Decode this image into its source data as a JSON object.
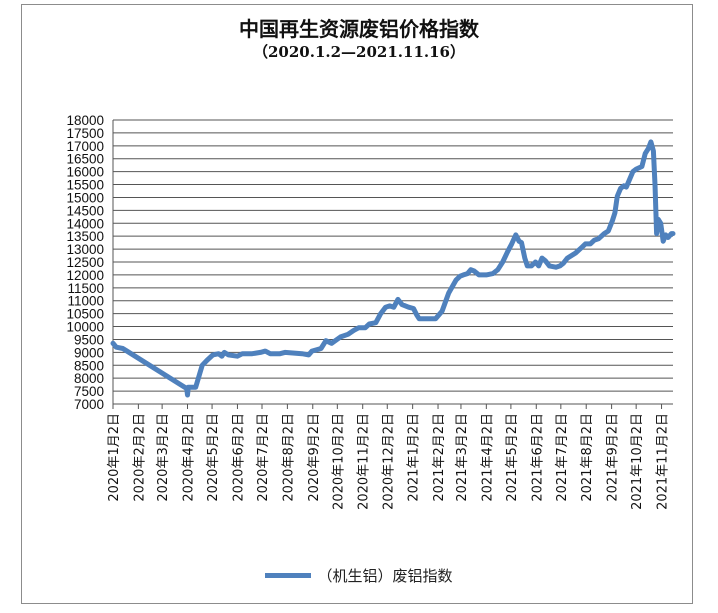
{
  "chart_data": {
    "type": "line",
    "title": "中国再生资源废铝价格指数",
    "subtitle": "（2020.1.2—2021.11.16）",
    "xlabel": "",
    "ylabel": "",
    "ylim": [
      7000,
      18000
    ],
    "yticks": [
      7000,
      7500,
      8000,
      8500,
      9000,
      9500,
      10000,
      10500,
      11000,
      11500,
      12000,
      12500,
      13000,
      13500,
      14000,
      14500,
      15000,
      15500,
      16000,
      16500,
      17000,
      17500,
      18000
    ],
    "xlim": [
      "2020-01-02",
      "2021-11-16"
    ],
    "x_ticks": [
      {
        "date": "2020-01-02",
        "label": "2020年1月2日"
      },
      {
        "date": "2020-02-02",
        "label": "2020年2月2日"
      },
      {
        "date": "2020-03-02",
        "label": "2020年3月2日"
      },
      {
        "date": "2020-04-02",
        "label": "2020年4月2日"
      },
      {
        "date": "2020-05-02",
        "label": "2020年5月2日"
      },
      {
        "date": "2020-06-02",
        "label": "2020年6月2日"
      },
      {
        "date": "2020-07-02",
        "label": "2020年7月2日"
      },
      {
        "date": "2020-08-02",
        "label": "2020年8月2日"
      },
      {
        "date": "2020-09-02",
        "label": "2020年9月2日"
      },
      {
        "date": "2020-10-02",
        "label": "2020年10月2日"
      },
      {
        "date": "2020-11-02",
        "label": "2020年11月2日"
      },
      {
        "date": "2020-12-02",
        "label": "2020年12月2日"
      },
      {
        "date": "2021-01-02",
        "label": "2021年1月2日"
      },
      {
        "date": "2021-02-02",
        "label": "2021年2月2日"
      },
      {
        "date": "2021-03-02",
        "label": "2021年3月2日"
      },
      {
        "date": "2021-04-02",
        "label": "2021年4月2日"
      },
      {
        "date": "2021-05-02",
        "label": "2021年5月2日"
      },
      {
        "date": "2021-06-02",
        "label": "2021年6月2日"
      },
      {
        "date": "2021-07-02",
        "label": "2021年7月2日"
      },
      {
        "date": "2021-08-02",
        "label": "2021年8月2日"
      },
      {
        "date": "2021-09-02",
        "label": "2021年9月2日"
      },
      {
        "date": "2021-10-02",
        "label": "2021年10月2日"
      },
      {
        "date": "2021-11-02",
        "label": "2021年11月2日"
      }
    ],
    "grid": true,
    "legend": "bottom",
    "color": "#4f81bd",
    "series": [
      {
        "name": "（机生铝）废铝指数",
        "points": [
          [
            "2020-01-02",
            9350
          ],
          [
            "2020-01-06",
            9200
          ],
          [
            "2020-01-14",
            9150
          ],
          [
            "2020-04-01",
            7600
          ],
          [
            "2020-04-02",
            7350
          ],
          [
            "2020-04-03",
            7650
          ],
          [
            "2020-04-12",
            7650
          ],
          [
            "2020-04-20",
            8500
          ],
          [
            "2020-04-26",
            8700
          ],
          [
            "2020-05-03",
            8900
          ],
          [
            "2020-05-10",
            8950
          ],
          [
            "2020-05-14",
            8850
          ],
          [
            "2020-05-17",
            9000
          ],
          [
            "2020-05-22",
            8900
          ],
          [
            "2020-06-02",
            8850
          ],
          [
            "2020-06-08",
            8950
          ],
          [
            "2020-06-20",
            8950
          ],
          [
            "2020-06-30",
            9000
          ],
          [
            "2020-07-06",
            9050
          ],
          [
            "2020-07-12",
            8950
          ],
          [
            "2020-07-24",
            8950
          ],
          [
            "2020-07-30",
            9000
          ],
          [
            "2020-08-20",
            8950
          ],
          [
            "2020-08-28",
            8900
          ],
          [
            "2020-09-01",
            9050
          ],
          [
            "2020-09-12",
            9150
          ],
          [
            "2020-09-18",
            9450
          ],
          [
            "2020-09-25",
            9350
          ],
          [
            "2020-10-06",
            9600
          ],
          [
            "2020-10-15",
            9700
          ],
          [
            "2020-10-22",
            9850
          ],
          [
            "2020-10-28",
            9950
          ],
          [
            "2020-11-05",
            9950
          ],
          [
            "2020-11-10",
            10100
          ],
          [
            "2020-11-18",
            10150
          ],
          [
            "2020-11-24",
            10500
          ],
          [
            "2020-11-30",
            10750
          ],
          [
            "2020-12-05",
            10800
          ],
          [
            "2020-12-10",
            10750
          ],
          [
            "2020-12-15",
            11050
          ],
          [
            "2020-12-20",
            10850
          ],
          [
            "2020-12-28",
            10750
          ],
          [
            "2021-01-03",
            10700
          ],
          [
            "2021-01-07",
            10450
          ],
          [
            "2021-01-10",
            10300
          ],
          [
            "2021-01-25",
            10300
          ],
          [
            "2021-01-30",
            10300
          ],
          [
            "2021-02-07",
            10600
          ],
          [
            "2021-02-15",
            11300
          ],
          [
            "2021-02-24",
            11800
          ],
          [
            "2021-03-01",
            11950
          ],
          [
            "2021-03-05",
            12000
          ],
          [
            "2021-03-10",
            12050
          ],
          [
            "2021-03-14",
            12200
          ],
          [
            "2021-03-18",
            12150
          ],
          [
            "2021-03-24",
            12000
          ],
          [
            "2021-04-02",
            12000
          ],
          [
            "2021-04-10",
            12050
          ],
          [
            "2021-04-16",
            12200
          ],
          [
            "2021-04-22",
            12500
          ],
          [
            "2021-04-28",
            12900
          ],
          [
            "2021-05-03",
            13200
          ],
          [
            "2021-05-08",
            13550
          ],
          [
            "2021-05-12",
            13300
          ],
          [
            "2021-05-15",
            13250
          ],
          [
            "2021-05-19",
            12650
          ],
          [
            "2021-05-22",
            12350
          ],
          [
            "2021-05-27",
            12350
          ],
          [
            "2021-06-01",
            12500
          ],
          [
            "2021-06-05",
            12350
          ],
          [
            "2021-06-09",
            12650
          ],
          [
            "2021-06-13",
            12550
          ],
          [
            "2021-06-18",
            12350
          ],
          [
            "2021-06-26",
            12300
          ],
          [
            "2021-07-01",
            12350
          ],
          [
            "2021-07-05",
            12450
          ],
          [
            "2021-07-10",
            12650
          ],
          [
            "2021-07-20",
            12850
          ],
          [
            "2021-07-27",
            13050
          ],
          [
            "2021-08-01",
            13200
          ],
          [
            "2021-08-07",
            13200
          ],
          [
            "2021-08-12",
            13350
          ],
          [
            "2021-08-17",
            13400
          ],
          [
            "2021-08-24",
            13600
          ],
          [
            "2021-08-29",
            13700
          ],
          [
            "2021-09-03",
            14100
          ],
          [
            "2021-09-06",
            14400
          ],
          [
            "2021-09-09",
            15050
          ],
          [
            "2021-09-13",
            15350
          ],
          [
            "2021-09-17",
            15450
          ],
          [
            "2021-09-20",
            15400
          ],
          [
            "2021-09-24",
            15700
          ],
          [
            "2021-09-28",
            16000
          ],
          [
            "2021-10-02",
            16100
          ],
          [
            "2021-10-09",
            16200
          ],
          [
            "2021-10-13",
            16700
          ],
          [
            "2021-10-17",
            16900
          ],
          [
            "2021-10-20",
            17150
          ],
          [
            "2021-10-23",
            16800
          ],
          [
            "2021-10-25",
            15500
          ],
          [
            "2021-10-27",
            13600
          ],
          [
            "2021-10-29",
            14150
          ],
          [
            "2021-11-01",
            14000
          ],
          [
            "2021-11-04",
            13300
          ],
          [
            "2021-11-07",
            13550
          ],
          [
            "2021-11-10",
            13450
          ],
          [
            "2021-11-14",
            13600
          ],
          [
            "2021-11-16",
            13600
          ]
        ]
      }
    ]
  }
}
